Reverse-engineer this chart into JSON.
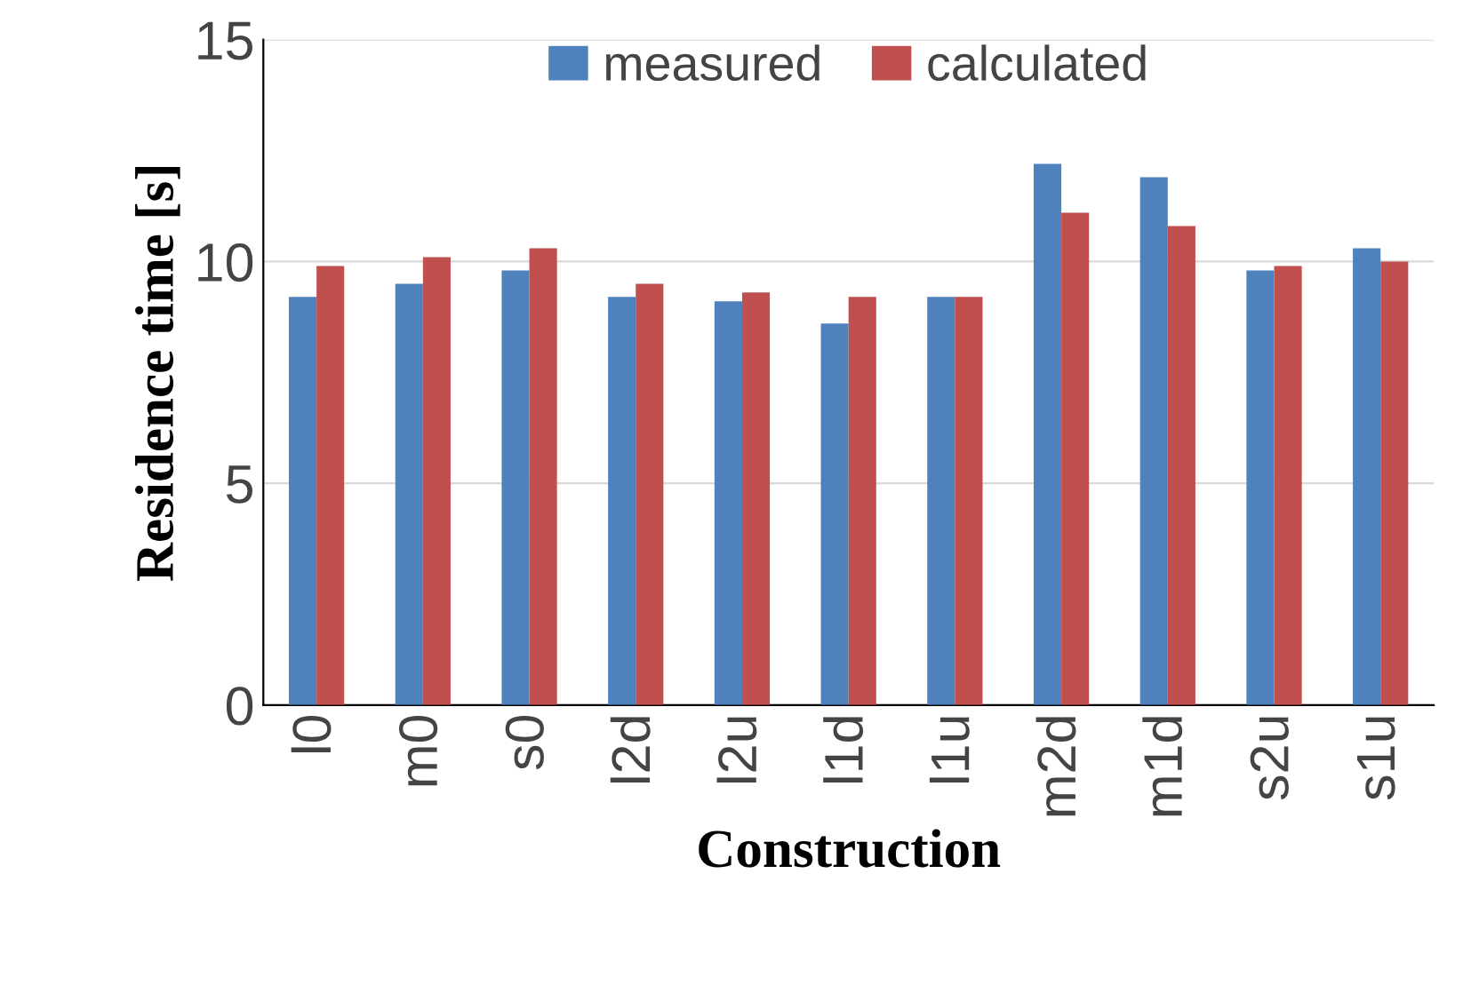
{
  "chart_data": {
    "type": "bar",
    "xlabel": "Construction",
    "ylabel": "Residence time [s]",
    "categories": [
      "l0",
      "m0",
      "s0",
      "l2d",
      "l2u",
      "l1d",
      "l1u",
      "m2d",
      "m1d",
      "s2u",
      "s1u"
    ],
    "series": [
      {
        "name": "measured",
        "color": "#4f81bd",
        "values": [
          9.2,
          9.5,
          9.8,
          9.2,
          9.1,
          8.6,
          9.2,
          12.2,
          11.9,
          9.8,
          10.3
        ]
      },
      {
        "name": "calculated",
        "color": "#c0504d",
        "values": [
          9.9,
          10.1,
          10.3,
          9.5,
          9.3,
          9.2,
          9.2,
          11.1,
          10.8,
          9.9,
          10.0
        ]
      }
    ],
    "ylim": [
      0,
      15
    ],
    "yticks": [
      0,
      5,
      10,
      15
    ],
    "grid": "y",
    "legend": "top"
  }
}
